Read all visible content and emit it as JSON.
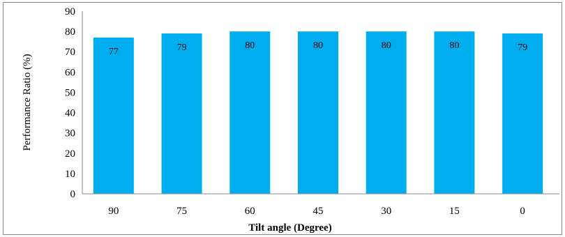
{
  "chart_data": {
    "type": "bar",
    "xlabel": "Tilt angle (Degree)",
    "ylabel": "Performance Ratio (%)",
    "categories": [
      "90",
      "75",
      "60",
      "45",
      "30",
      "15",
      "0"
    ],
    "values": [
      77,
      79,
      80,
      80,
      80,
      80,
      79
    ],
    "data_labels": [
      "77",
      "79",
      "80",
      "80",
      "80",
      "80",
      "79"
    ],
    "ylim": [
      0,
      90
    ],
    "yticks": [
      0,
      10,
      20,
      30,
      40,
      50,
      60,
      70,
      80,
      90
    ],
    "grid": false,
    "bar_color": "#00aeef"
  }
}
